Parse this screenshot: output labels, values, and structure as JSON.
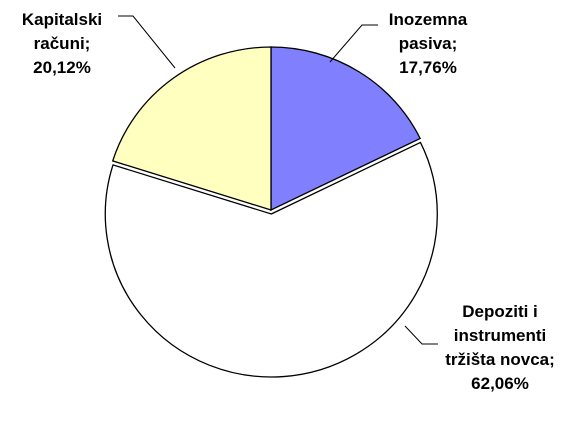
{
  "chart_data": {
    "type": "pie",
    "categories": [
      "Inozemna pasiva;",
      "Depoziti i instrumenti tržišta novca;",
      "Kapitalski računi;"
    ],
    "values": [
      17.76,
      62.06,
      20.12
    ],
    "value_labels": [
      "17,76%",
      "62,06%",
      "20,12%"
    ],
    "colors": [
      "#8080ff",
      "#ffffff",
      "#ffffc0"
    ]
  }
}
